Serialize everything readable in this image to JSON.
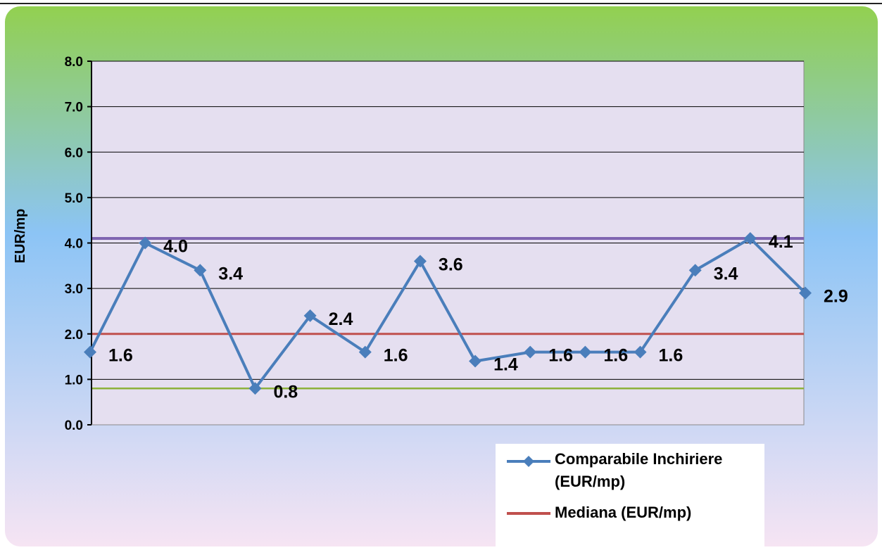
{
  "colors": {
    "series_line": "#4a7ebb",
    "median_line": "#c0504d",
    "upper_line": "#7f65b1",
    "lower_line": "#8db23b",
    "plot_background": "#e5dff0",
    "gradient_top": "#92d050",
    "gradient_mid": "#8cc4f5",
    "gradient_bottom": "#f6e4f3"
  },
  "chart_data": {
    "type": "line",
    "title": "",
    "xlabel": "",
    "ylabel": "EUR/mp",
    "ylim": [
      0,
      8
    ],
    "y_ticks": [
      "0.0",
      "1.0",
      "2.0",
      "3.0",
      "4.0",
      "5.0",
      "6.0",
      "7.0",
      "8.0"
    ],
    "grid": true,
    "legend_position": "bottom-right",
    "series": [
      {
        "name": "Comparabile Inchiriere (EUR/mp)",
        "values": [
          1.6,
          4.0,
          3.4,
          0.8,
          2.4,
          1.6,
          3.6,
          1.4,
          1.6,
          1.6,
          1.6,
          3.4,
          4.1,
          2.9
        ],
        "labels": [
          "1.6",
          "4.0",
          "3.4",
          "0.8",
          "2.4",
          "1.6",
          "3.6",
          "1.4",
          "1.6",
          "1.6",
          "1.6",
          "3.4",
          "4.1",
          "2.9"
        ]
      },
      {
        "name": "Mediana (EUR/mp)",
        "value": 2.0
      }
    ],
    "reference_lines": [
      4.1,
      0.8
    ]
  }
}
